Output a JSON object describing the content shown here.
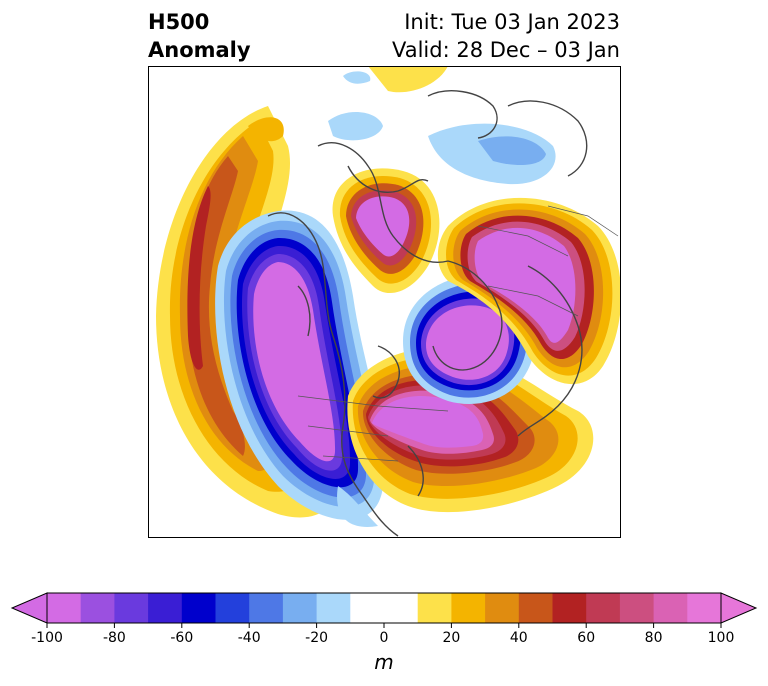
{
  "title": {
    "left_line1": "H500",
    "left_line2": "Anomaly",
    "right_line1": "Init: Tue 03 Jan 2023",
    "right_line2": "Valid: 28 Dec – 03 Jan"
  },
  "map": {
    "projection": "north-polar-stereographic",
    "field": "500 hPa geopotential height anomaly",
    "features": [
      {
        "name": "north-pacific-ridge",
        "sign": "positive",
        "peak": 60
      },
      {
        "name": "western-north-america-trough",
        "sign": "negative",
        "peak": -100
      },
      {
        "name": "eastern-north-america-ridge",
        "sign": "positive",
        "peak": 100
      },
      {
        "name": "north-atlantic-trough",
        "sign": "negative",
        "peak": -100
      },
      {
        "name": "europe-ridge",
        "sign": "positive",
        "peak": 100
      },
      {
        "name": "siberia-ridge",
        "sign": "positive",
        "peak": 100
      },
      {
        "name": "arctic-weak-negative",
        "sign": "negative",
        "peak": -30
      }
    ]
  },
  "colorbar": {
    "unit": "m",
    "ticks": [
      "-100",
      "-80",
      "-60",
      "-40",
      "-20",
      "0",
      "20",
      "40",
      "60",
      "80",
      "100"
    ],
    "colors": [
      "#d36be4",
      "#9b50e0",
      "#6a3ade",
      "#3a1ed4",
      "#0000cc",
      "#2340dc",
      "#4e78e6",
      "#78aef0",
      "#aad8fa",
      "#ffffff",
      "#ffffff",
      "#fde14a",
      "#f4b400",
      "#e08c10",
      "#c8561a",
      "#b22222",
      "#c03a54",
      "#cc4f80",
      "#da62b4",
      "#e676d9"
    ]
  }
}
